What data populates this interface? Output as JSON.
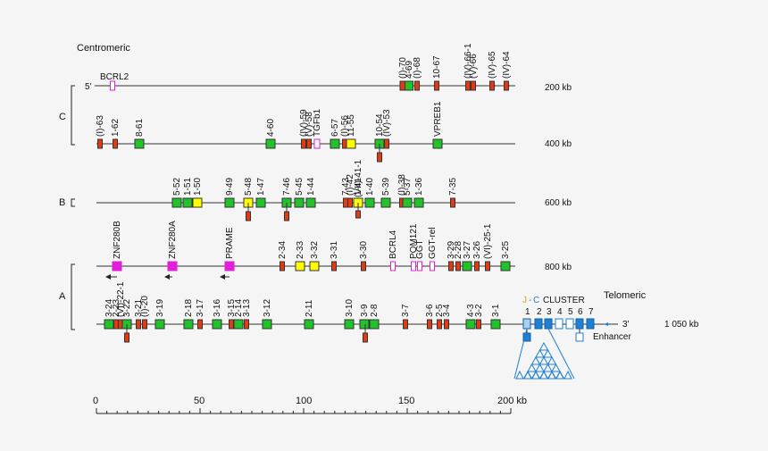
{
  "colors": {
    "functional": "#22c32a",
    "orf": "#e33a12",
    "pseudo": "#ffff00",
    "nonig": "#e020d8",
    "jc": "#1e7fd6",
    "enh": "#ffffff"
  },
  "labels": {
    "centromeric": "Centromeric",
    "telomeric": "Telomeric",
    "five_prime": "5'",
    "three_prime": "3'",
    "kb200": "200 kb",
    "kb400": "400 kb",
    "kb600": "600 kb",
    "kb800": "800 kb",
    "kb1050": "1 050 kb",
    "C": "C",
    "B": "B",
    "A": "A",
    "jc_j": "J",
    "jc_c": "C",
    "jc_cluster": "CLUSTER",
    "enhancer": "Enhancer",
    "jc_numbers": [
      "1",
      "2",
      "3",
      "4",
      "5",
      "6",
      "7"
    ],
    "scale_ticks": [
      "0",
      "50",
      "100",
      "150",
      "200 kb"
    ]
  },
  "rows": [
    {
      "genes": [
        {
          "l": "BCRL2",
          "t": "nonig",
          "h": true
        },
        {
          "l": "(I)-70",
          "t": "orf"
        },
        {
          "l": "4-69",
          "t": "functional"
        },
        {
          "l": "(I)-68",
          "t": "orf"
        },
        {
          "l": "10-67",
          "t": "orf"
        },
        {
          "l": "(IV)-66-1",
          "t": "orf"
        },
        {
          "l": "(V)-66",
          "t": "orf"
        },
        {
          "l": "(IV)-65",
          "t": "orf"
        },
        {
          "l": "(IV)-64",
          "t": "orf"
        }
      ]
    },
    {
      "genes": [
        {
          "l": "(I)-63",
          "t": "orf"
        },
        {
          "l": "1-62",
          "t": "orf"
        },
        {
          "l": "8-61",
          "t": "functional"
        },
        {
          "l": "4-60",
          "t": "functional"
        },
        {
          "l": "(IV)-59",
          "t": "orf"
        },
        {
          "l": "(V)-58",
          "t": "orf"
        },
        {
          "l": "TGFb1",
          "t": "nonig"
        },
        {
          "l": "6-57",
          "t": "functional"
        },
        {
          "l": "(I)-56",
          "t": "orf"
        },
        {
          "l": "11-55",
          "t": "pseudo"
        },
        {
          "l": "10-54",
          "t": "functional"
        },
        {
          "l": "(IV)-53",
          "t": "orf"
        },
        {
          "l": "VPREB1",
          "t": "functional"
        }
      ]
    },
    {
      "genes": [
        {
          "l": "5-52",
          "t": "functional"
        },
        {
          "l": "1-51",
          "t": "functional"
        },
        {
          "l": "1-50",
          "t": "pseudo"
        },
        {
          "l": "9-49",
          "t": "functional"
        },
        {
          "l": "5-48",
          "t": "pseudo"
        },
        {
          "l": "1-47",
          "t": "functional"
        },
        {
          "l": "7-46",
          "t": "functional"
        },
        {
          "l": "5-45",
          "t": "functional"
        },
        {
          "l": "1-44",
          "t": "functional"
        },
        {
          "l": "7-43",
          "t": "orf"
        },
        {
          "l": "(I)-42",
          "t": "orf"
        },
        {
          "l": "1-41",
          "t": "pseudo"
        },
        {
          "l": "1-40",
          "t": "functional"
        },
        {
          "l": "5-39",
          "t": "functional"
        },
        {
          "l": "(I)-38",
          "t": "orf"
        },
        {
          "l": "5-37",
          "t": "functional"
        },
        {
          "l": "1-36",
          "t": "functional"
        },
        {
          "l": "7-35",
          "t": "orf"
        },
        {
          "l": "(VII)-41-1",
          "t": "orf"
        }
      ]
    },
    {
      "genes": [
        {
          "l": "ZNF280B",
          "t": "nonig"
        },
        {
          "l": "ZNF280A",
          "t": "nonig"
        },
        {
          "l": "PRAME",
          "t": "nonig"
        },
        {
          "l": "2-34",
          "t": "orf"
        },
        {
          "l": "2-33",
          "t": "pseudo"
        },
        {
          "l": "3-32",
          "t": "pseudo"
        },
        {
          "l": "3-31",
          "t": "orf"
        },
        {
          "l": "3-30",
          "t": "orf"
        },
        {
          "l": "BCRL4",
          "t": "nonig"
        },
        {
          "l": "POM121",
          "t": "nonig"
        },
        {
          "l": "GGT",
          "t": "nonig"
        },
        {
          "l": "GGT-rel",
          "t": "nonig"
        },
        {
          "l": "3-29",
          "t": "orf"
        },
        {
          "l": "2-28",
          "t": "orf"
        },
        {
          "l": "3-27",
          "t": "functional"
        },
        {
          "l": "3-26",
          "t": "orf"
        },
        {
          "l": "(VI)-25-1",
          "t": "orf"
        },
        {
          "l": "3-25",
          "t": "functional"
        }
      ]
    },
    {
      "genes": [
        {
          "l": "3-24",
          "t": "functional"
        },
        {
          "l": "2-23",
          "t": "orf"
        },
        {
          "l": "(VI)-22-1",
          "t": "orf"
        },
        {
          "l": "3-22",
          "t": "functional"
        },
        {
          "l": "3-21",
          "t": "orf"
        },
        {
          "l": "(I)-20",
          "t": "orf"
        },
        {
          "l": "3-19",
          "t": "functional"
        },
        {
          "l": "2-18",
          "t": "functional"
        },
        {
          "l": "3-17",
          "t": "orf"
        },
        {
          "l": "3-16",
          "t": "functional"
        },
        {
          "l": "3-15",
          "t": "orf"
        },
        {
          "l": "2-14",
          "t": "functional"
        },
        {
          "l": "3-13",
          "t": "orf"
        },
        {
          "l": "3-12",
          "t": "functional"
        },
        {
          "l": "2-11",
          "t": "functional"
        },
        {
          "l": "3-10",
          "t": "functional"
        },
        {
          "l": "3-9",
          "t": "functional"
        },
        {
          "l": "2-8",
          "t": "functional"
        },
        {
          "l": "3-7",
          "t": "orf"
        },
        {
          "l": "3-6",
          "t": "orf"
        },
        {
          "l": "2-5",
          "t": "orf"
        },
        {
          "l": "3-4",
          "t": "orf"
        },
        {
          "l": "4-3",
          "t": "functional"
        },
        {
          "l": "3-2",
          "t": "orf"
        },
        {
          "l": "3-1",
          "t": "functional"
        }
      ]
    }
  ]
}
